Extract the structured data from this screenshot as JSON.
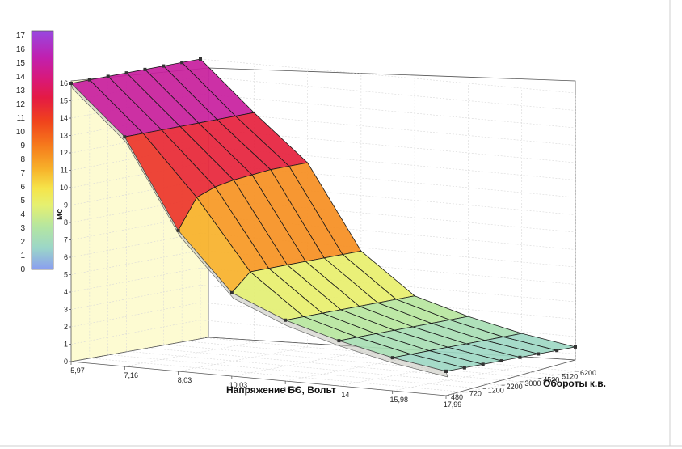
{
  "chart_data": {
    "type": "surface",
    "title": "",
    "legend": {
      "unit_label": "мс",
      "ticks": [
        "0",
        "1",
        "2",
        "3",
        "4",
        "5",
        "6",
        "7",
        "8",
        "9",
        "10",
        "11",
        "12",
        "13",
        "14",
        "15",
        "16",
        "17"
      ],
      "range": [
        0,
        17
      ],
      "colors": [
        "#8a9ef0",
        "#9bd6c8",
        "#b5e6a0",
        "#e6f070",
        "#f6e44a",
        "#f7b22a",
        "#f67a1c",
        "#f0431c",
        "#e41a44",
        "#d8197a",
        "#c020b0",
        "#9848e0"
      ]
    },
    "x_axis": {
      "label": "Напряжение БС, Вольт",
      "ticks": [
        "5,97",
        "7,16",
        "8,03",
        "10,03",
        "11,95",
        "14",
        "15,98",
        "17,99"
      ],
      "values": [
        5.97,
        7.16,
        8.03,
        10.03,
        11.95,
        14,
        15.98,
        17.99
      ]
    },
    "y_axis": {
      "label": "Обороты к.в.",
      "ticks": [
        "480",
        "720",
        "1200",
        "2200",
        "3000",
        "4520",
        "5120",
        "6200"
      ],
      "values": [
        480,
        720,
        1200,
        2200,
        3000,
        4520,
        5120,
        6200
      ]
    },
    "z_axis": {
      "label": "мс",
      "ticks": [
        "0",
        "1",
        "2",
        "3",
        "4",
        "5",
        "6",
        "7",
        "8",
        "9",
        "10",
        "11",
        "12",
        "13",
        "14",
        "15",
        "16"
      ],
      "range": [
        0,
        16
      ]
    },
    "surface": {
      "note_rows_are_voltage_cols_are_rpm": true,
      "values": [
        [
          16.0,
          16.0,
          16.0,
          16.0,
          16.0,
          16.0,
          16.0,
          16.0
        ],
        [
          13.2,
          13.2,
          13.2,
          13.2,
          13.2,
          13.2,
          13.2,
          13.2
        ],
        [
          8.1,
          9.8,
          10.2,
          10.4,
          10.5,
          10.6,
          10.6,
          10.6
        ],
        [
          4.8,
          5.8,
          5.8,
          5.8,
          5.8,
          5.8,
          5.8,
          5.8
        ],
        [
          3.5,
          3.5,
          3.5,
          3.5,
          3.5,
          3.5,
          3.5,
          3.5
        ],
        [
          2.6,
          2.6,
          2.6,
          2.6,
          2.6,
          2.6,
          2.6,
          2.6
        ],
        [
          1.9,
          1.9,
          1.9,
          1.9,
          1.9,
          1.9,
          1.9,
          1.9
        ],
        [
          1.4,
          1.4,
          1.4,
          1.4,
          1.4,
          1.4,
          1.4,
          1.4
        ]
      ]
    },
    "grid": true,
    "legend_position": "left"
  }
}
